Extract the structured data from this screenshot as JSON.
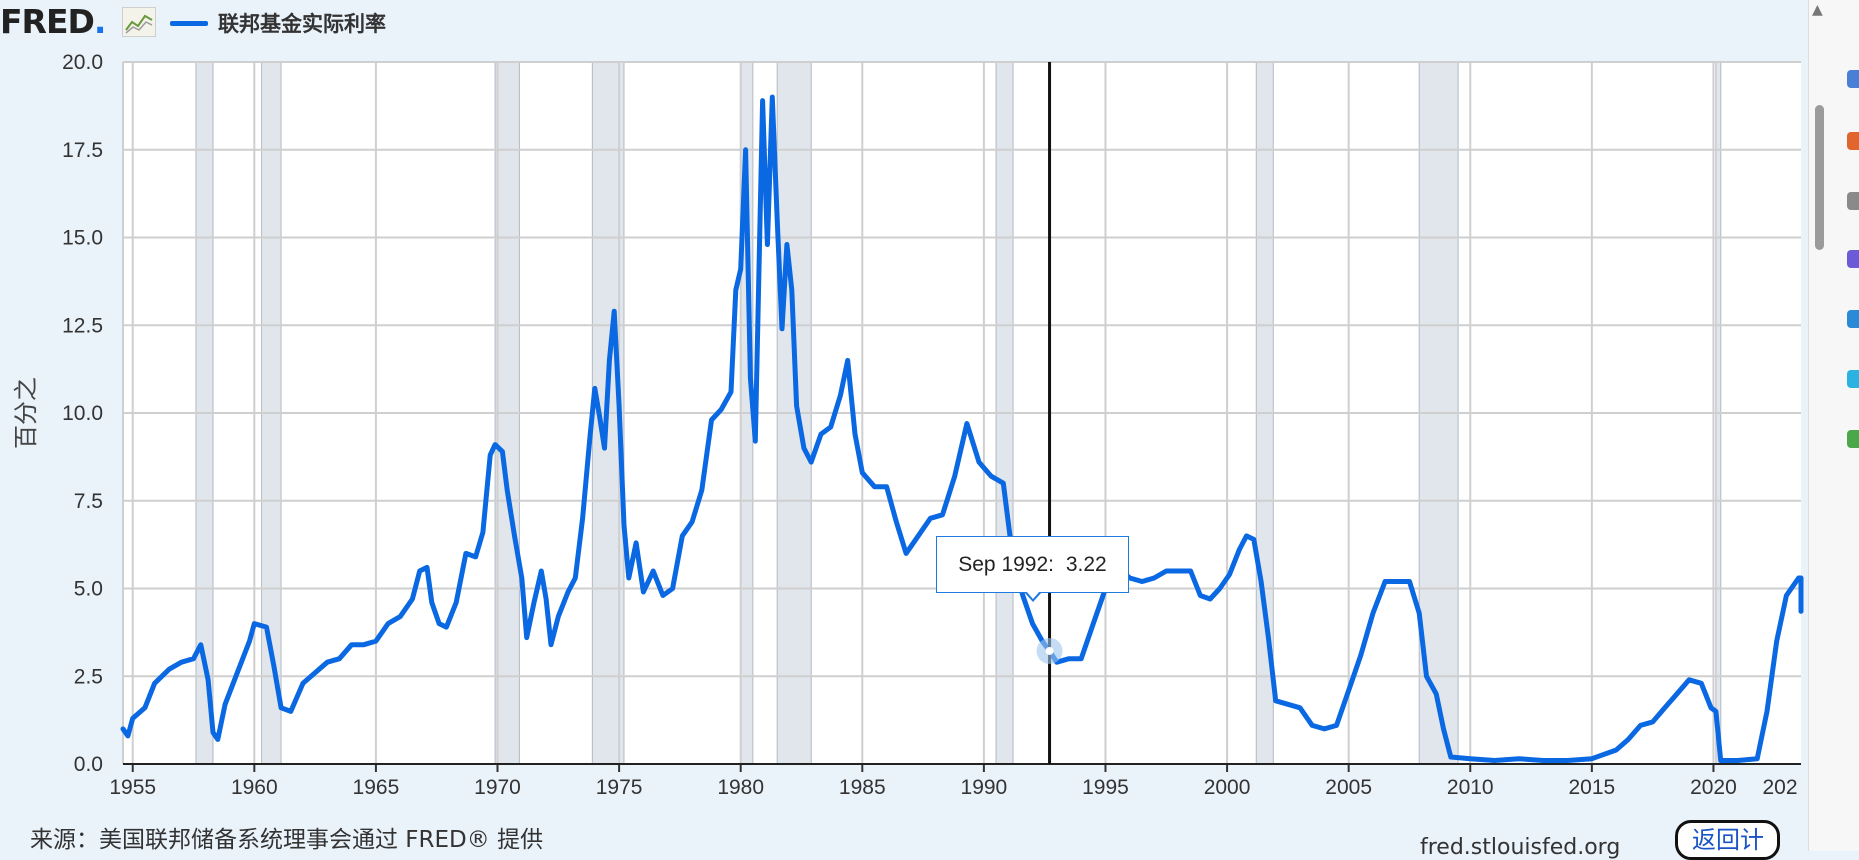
{
  "header": {
    "logo_text": "FRED",
    "legend_label": "联邦基金实际利率",
    "series_color": "#0a68e2"
  },
  "chart_data": {
    "type": "line",
    "ylabel": "百分之",
    "ylim": [
      0,
      20
    ],
    "xlim": [
      1954.6,
      2023.6
    ],
    "y_ticks": [
      "0.0",
      "2.5",
      "5.0",
      "7.5",
      "10.0",
      "12.5",
      "15.0",
      "17.5",
      "20.0"
    ],
    "x_ticks": [
      "1955",
      "1960",
      "1965",
      "1970",
      "1975",
      "1980",
      "1985",
      "1990",
      "1995",
      "2000",
      "2005",
      "2010",
      "2015",
      "2020",
      "202"
    ],
    "recessions": [
      [
        1957.6,
        1958.3
      ],
      [
        1960.3,
        1961.1
      ],
      [
        1969.9,
        1970.9
      ],
      [
        1973.9,
        1975.2
      ],
      [
        1980.0,
        1980.5
      ],
      [
        1981.5,
        1982.9
      ],
      [
        1990.5,
        1991.2
      ],
      [
        2001.2,
        2001.9
      ],
      [
        2007.9,
        2009.5
      ],
      [
        2020.1,
        2020.3
      ]
    ],
    "grid": true,
    "series": [
      {
        "name": "联邦基金实际利率",
        "color": "#0a68e2",
        "points": [
          [
            1954.6,
            1.0
          ],
          [
            1954.8,
            0.8
          ],
          [
            1955.0,
            1.3
          ],
          [
            1955.5,
            1.6
          ],
          [
            1955.9,
            2.3
          ],
          [
            1956.5,
            2.7
          ],
          [
            1957.0,
            2.9
          ],
          [
            1957.5,
            3.0
          ],
          [
            1957.8,
            3.4
          ],
          [
            1958.1,
            2.4
          ],
          [
            1958.3,
            0.9
          ],
          [
            1958.5,
            0.7
          ],
          [
            1958.8,
            1.7
          ],
          [
            1959.3,
            2.6
          ],
          [
            1959.8,
            3.5
          ],
          [
            1960.0,
            4.0
          ],
          [
            1960.5,
            3.9
          ],
          [
            1960.8,
            2.8
          ],
          [
            1961.1,
            1.6
          ],
          [
            1961.5,
            1.5
          ],
          [
            1962.0,
            2.3
          ],
          [
            1962.5,
            2.6
          ],
          [
            1963.0,
            2.9
          ],
          [
            1963.5,
            3.0
          ],
          [
            1964.0,
            3.4
          ],
          [
            1964.5,
            3.4
          ],
          [
            1965.0,
            3.5
          ],
          [
            1965.5,
            4.0
          ],
          [
            1966.0,
            4.2
          ],
          [
            1966.5,
            4.7
          ],
          [
            1966.8,
            5.5
          ],
          [
            1967.1,
            5.6
          ],
          [
            1967.3,
            4.6
          ],
          [
            1967.6,
            4.0
          ],
          [
            1967.9,
            3.9
          ],
          [
            1968.3,
            4.6
          ],
          [
            1968.7,
            6.0
          ],
          [
            1969.1,
            5.9
          ],
          [
            1969.4,
            6.6
          ],
          [
            1969.7,
            8.8
          ],
          [
            1969.9,
            9.1
          ],
          [
            1970.2,
            8.9
          ],
          [
            1970.4,
            7.8
          ],
          [
            1970.7,
            6.5
          ],
          [
            1971.0,
            5.3
          ],
          [
            1971.2,
            3.6
          ],
          [
            1971.5,
            4.6
          ],
          [
            1971.8,
            5.5
          ],
          [
            1972.0,
            4.7
          ],
          [
            1972.2,
            3.4
          ],
          [
            1972.5,
            4.2
          ],
          [
            1972.9,
            4.9
          ],
          [
            1973.2,
            5.3
          ],
          [
            1973.5,
            7.0
          ],
          [
            1973.8,
            9.3
          ],
          [
            1974.0,
            10.7
          ],
          [
            1974.2,
            9.9
          ],
          [
            1974.4,
            9.0
          ],
          [
            1974.6,
            11.5
          ],
          [
            1974.8,
            12.9
          ],
          [
            1975.0,
            10.2
          ],
          [
            1975.2,
            6.8
          ],
          [
            1975.4,
            5.3
          ],
          [
            1975.7,
            6.3
          ],
          [
            1976.0,
            4.9
          ],
          [
            1976.4,
            5.5
          ],
          [
            1976.8,
            4.8
          ],
          [
            1977.2,
            5.0
          ],
          [
            1977.6,
            6.5
          ],
          [
            1978.0,
            6.9
          ],
          [
            1978.4,
            7.8
          ],
          [
            1978.8,
            9.8
          ],
          [
            1979.2,
            10.1
          ],
          [
            1979.6,
            10.6
          ],
          [
            1979.8,
            13.5
          ],
          [
            1980.0,
            14.1
          ],
          [
            1980.2,
            17.5
          ],
          [
            1980.4,
            11.0
          ],
          [
            1980.6,
            9.2
          ],
          [
            1980.9,
            18.9
          ],
          [
            1981.1,
            14.8
          ],
          [
            1981.3,
            19.0
          ],
          [
            1981.5,
            15.5
          ],
          [
            1981.7,
            12.4
          ],
          [
            1981.9,
            14.8
          ],
          [
            1982.1,
            13.5
          ],
          [
            1982.3,
            10.2
          ],
          [
            1982.6,
            9.0
          ],
          [
            1982.9,
            8.6
          ],
          [
            1983.3,
            9.4
          ],
          [
            1983.7,
            9.6
          ],
          [
            1984.1,
            10.5
          ],
          [
            1984.4,
            11.5
          ],
          [
            1984.7,
            9.4
          ],
          [
            1985.0,
            8.3
          ],
          [
            1985.5,
            7.9
          ],
          [
            1986.0,
            7.9
          ],
          [
            1986.4,
            6.9
          ],
          [
            1986.8,
            6.0
          ],
          [
            1987.3,
            6.5
          ],
          [
            1987.8,
            7.0
          ],
          [
            1988.3,
            7.1
          ],
          [
            1988.8,
            8.2
          ],
          [
            1989.3,
            9.7
          ],
          [
            1989.8,
            8.6
          ],
          [
            1990.3,
            8.2
          ],
          [
            1990.8,
            8.0
          ],
          [
            1991.2,
            5.8
          ],
          [
            1991.6,
            4.8
          ],
          [
            1992.0,
            4.0
          ],
          [
            1992.4,
            3.5
          ],
          [
            1992.7,
            3.22
          ],
          [
            1993.0,
            2.9
          ],
          [
            1993.5,
            3.0
          ],
          [
            1994.0,
            3.0
          ],
          [
            1994.5,
            4.0
          ],
          [
            1995.0,
            5.0
          ],
          [
            1995.5,
            5.6
          ],
          [
            1996.0,
            5.3
          ],
          [
            1996.5,
            5.2
          ],
          [
            1997.0,
            5.3
          ],
          [
            1997.5,
            5.5
          ],
          [
            1998.0,
            5.5
          ],
          [
            1998.5,
            5.5
          ],
          [
            1998.9,
            4.8
          ],
          [
            1999.3,
            4.7
          ],
          [
            1999.7,
            5.0
          ],
          [
            2000.1,
            5.4
          ],
          [
            2000.5,
            6.1
          ],
          [
            2000.8,
            6.5
          ],
          [
            2001.1,
            6.4
          ],
          [
            2001.4,
            5.2
          ],
          [
            2001.7,
            3.6
          ],
          [
            2002.0,
            1.8
          ],
          [
            2002.5,
            1.7
          ],
          [
            2003.0,
            1.6
          ],
          [
            2003.5,
            1.1
          ],
          [
            2004.0,
            1.0
          ],
          [
            2004.5,
            1.1
          ],
          [
            2005.0,
            2.1
          ],
          [
            2005.5,
            3.1
          ],
          [
            2006.0,
            4.3
          ],
          [
            2006.5,
            5.2
          ],
          [
            2007.0,
            5.2
          ],
          [
            2007.5,
            5.2
          ],
          [
            2007.9,
            4.3
          ],
          [
            2008.2,
            2.5
          ],
          [
            2008.6,
            2.0
          ],
          [
            2008.9,
            1.0
          ],
          [
            2009.2,
            0.2
          ],
          [
            2010.0,
            0.15
          ],
          [
            2011.0,
            0.1
          ],
          [
            2012.0,
            0.15
          ],
          [
            2013.0,
            0.1
          ],
          [
            2014.0,
            0.1
          ],
          [
            2015.0,
            0.15
          ],
          [
            2016.0,
            0.4
          ],
          [
            2016.5,
            0.7
          ],
          [
            2017.0,
            1.1
          ],
          [
            2017.5,
            1.2
          ],
          [
            2018.0,
            1.6
          ],
          [
            2018.5,
            2.0
          ],
          [
            2019.0,
            2.4
          ],
          [
            2019.5,
            2.3
          ],
          [
            2019.9,
            1.6
          ],
          [
            2020.1,
            1.5
          ],
          [
            2020.3,
            0.1
          ],
          [
            2021.0,
            0.1
          ],
          [
            2021.8,
            0.15
          ],
          [
            2022.2,
            1.5
          ],
          [
            2022.6,
            3.5
          ],
          [
            2023.0,
            4.8
          ],
          [
            2023.5,
            5.3
          ],
          [
            2024.0,
            5.3
          ],
          [
            2024.6,
            5.3
          ],
          [
            2024.8,
            4.7
          ],
          [
            2025.0,
            4.35
          ]
        ]
      }
    ],
    "tooltip": {
      "label": "Sep 1992:",
      "value": "3.22",
      "x": 1992.7,
      "y": 3.22
    }
  },
  "footer": {
    "source": "来源：美国联邦储备系统理事会通过 FRED® 提供",
    "site": "fred.stlouisfed.org",
    "back_button": "返回计"
  }
}
